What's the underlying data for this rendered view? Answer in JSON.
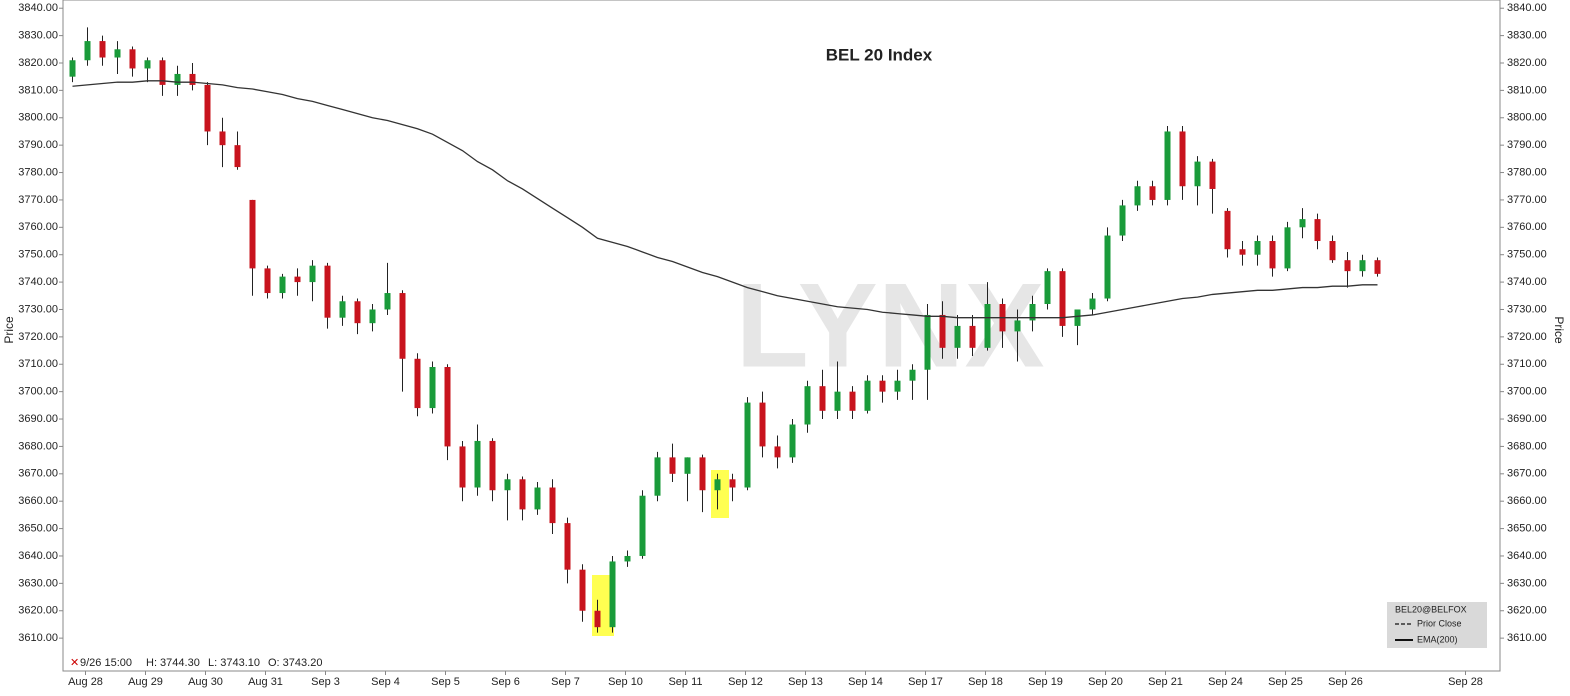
{
  "chart_data": {
    "type": "candlestick",
    "title": "BEL 20 Index",
    "ylabel": "Price",
    "watermark": "LYNX",
    "up_color": "#1a9b3a",
    "down_color": "#c8141e",
    "categories": [
      null,
      "Aug 28",
      null,
      null,
      null,
      "Aug 29",
      null,
      null,
      null,
      "Aug 30",
      null,
      null,
      null,
      "Aug 31",
      null,
      null,
      null,
      "Sep 3",
      null,
      null,
      null,
      "Sep 4",
      null,
      null,
      null,
      "Sep 5",
      null,
      null,
      null,
      "Sep 6",
      null,
      null,
      null,
      "Sep 7",
      null,
      null,
      null,
      "Sep 10",
      null,
      null,
      null,
      "Sep 11",
      null,
      null,
      null,
      "Sep 12",
      null,
      null,
      null,
      "Sep 13",
      null,
      null,
      null,
      "Sep 14",
      null,
      null,
      null,
      "Sep 17",
      null,
      null,
      null,
      "Sep 18",
      null,
      null,
      null,
      "Sep 19",
      null,
      null,
      null,
      "Sep 20",
      null,
      null,
      null,
      "Sep 21",
      null,
      null,
      null,
      "Sep 24",
      null,
      null,
      null,
      "Sep 25",
      null,
      null,
      null,
      "Sep 26",
      null,
      null,
      null,
      null,
      null,
      null,
      null,
      "Sep 28"
    ],
    "open": [
      3815,
      3821,
      3828,
      3822,
      3825,
      3818,
      3821,
      3812,
      3816,
      3812,
      3795,
      3790,
      3770,
      3745,
      3736,
      3742,
      3740,
      3746,
      3727,
      3733,
      3725,
      3730,
      3736,
      3712,
      3694,
      3709,
      3680,
      3665,
      3682,
      3664,
      3668,
      3657,
      3665,
      3652,
      3635,
      3620,
      3614,
      3638,
      3640,
      3662,
      3676,
      3670,
      3676,
      3664,
      3668,
      3665,
      3696,
      3680,
      3676,
      3688,
      3702,
      3693,
      3700,
      3693,
      3704,
      3700,
      3704,
      3708,
      3728,
      3716,
      3724,
      3716,
      3732,
      3722,
      3726,
      3732,
      3744,
      3724,
      3730,
      3734,
      3757,
      3768,
      3775,
      3770,
      3795,
      3775,
      3784,
      3766,
      3752,
      3750,
      3755,
      3745,
      3760,
      3763,
      3755,
      3748,
      3744,
      3748,
      null,
      null,
      null,
      null,
      null,
      null
    ],
    "high": [
      3822,
      3833,
      3830,
      3828,
      3826,
      3822,
      3822,
      3819,
      3820,
      3813,
      3800,
      3795,
      3770,
      3746,
      3743,
      3745,
      3748,
      3747,
      3735,
      3734,
      3732,
      3747,
      3737,
      3714,
      3711,
      3710,
      3682,
      3688,
      3683,
      3670,
      3669,
      3667,
      3668,
      3654,
      3637,
      3624,
      3640,
      3642,
      3664,
      3678,
      3681,
      3676,
      3677,
      3670,
      3670,
      3698,
      3700,
      3684,
      3690,
      3704,
      3708,
      3711,
      3702,
      3706,
      3706,
      3708,
      3710,
      3732,
      3733,
      3728,
      3728,
      3740,
      3734,
      3730,
      3735,
      3745,
      3745,
      3730,
      3736,
      3760,
      3770,
      3777,
      3777,
      3797,
      3797,
      3786,
      3785,
      3767,
      3755,
      3757,
      3757,
      3762,
      3767,
      3765,
      3757,
      3751,
      3750,
      3749,
      null,
      null,
      null,
      null,
      null,
      null
    ],
    "low": [
      3813,
      3819,
      3819,
      3816,
      3815,
      3813,
      3808,
      3808,
      3810,
      3790,
      3782,
      3781,
      3735,
      3734,
      3734,
      3735,
      3733,
      3723,
      3724,
      3721,
      3722,
      3728,
      3700,
      3691,
      3692,
      3675,
      3660,
      3662,
      3660,
      3653,
      3653,
      3655,
      3648,
      3630,
      3616,
      3612,
      3612,
      3636,
      3639,
      3660,
      3667,
      3660,
      3656,
      3657,
      3660,
      3664,
      3676,
      3672,
      3674,
      3685,
      3690,
      3690,
      3690,
      3692,
      3696,
      3697,
      3697,
      3697,
      3712,
      3712,
      3713,
      3715,
      3716,
      3711,
      3722,
      3730,
      3720,
      3717,
      3728,
      3733,
      3755,
      3766,
      3768,
      3768,
      3770,
      3768,
      3765,
      3749,
      3746,
      3746,
      3742,
      3744,
      3756,
      3752,
      3747,
      3738,
      3742,
      3742,
      null,
      null,
      null,
      null,
      null,
      null
    ],
    "close": [
      3821,
      3828,
      3822,
      3825,
      3818,
      3821,
      3812,
      3816,
      3812,
      3795,
      3790,
      3782,
      3745,
      3736,
      3742,
      3740,
      3746,
      3727,
      3733,
      3725,
      3730,
      3736,
      3712,
      3694,
      3709,
      3680,
      3665,
      3682,
      3664,
      3668,
      3657,
      3665,
      3652,
      3635,
      3620,
      3614,
      3638,
      3640,
      3662,
      3676,
      3670,
      3676,
      3664,
      3668,
      3665,
      3696,
      3680,
      3676,
      3688,
      3702,
      3693,
      3700,
      3693,
      3704,
      3700,
      3704,
      3708,
      3728,
      3716,
      3724,
      3716,
      3732,
      3722,
      3726,
      3732,
      3744,
      3724,
      3730,
      3734,
      3757,
      3768,
      3775,
      3770,
      3795,
      3775,
      3784,
      3774,
      3752,
      3750,
      3755,
      3745,
      3760,
      3763,
      3755,
      3748,
      3744,
      3748,
      3743,
      null,
      null,
      null,
      null,
      null,
      null
    ],
    "series": [
      {
        "name": "EMA(200)",
        "color": "#333333",
        "values": [
          3811.5,
          3812,
          3812.5,
          3813,
          3813,
          3813.5,
          3813.5,
          3813,
          3813,
          3812.5,
          3812,
          3811,
          3810.5,
          3809.5,
          3808.5,
          3807,
          3806,
          3804.5,
          3803,
          3801.5,
          3800,
          3799,
          3797.5,
          3796,
          3794,
          3791,
          3788,
          3784,
          3781,
          3777,
          3774,
          3770.5,
          3767,
          3763.5,
          3760,
          3756,
          3754.5,
          3753,
          3751,
          3749,
          3747.5,
          3745.5,
          3743.5,
          3742,
          3740,
          3738,
          3736.5,
          3735,
          3734,
          3733,
          3732,
          3731,
          3730.5,
          3730,
          3729,
          3728.5,
          3728,
          3727.5,
          3727.5,
          3727,
          3727,
          3727,
          3727,
          3727,
          3727,
          3727,
          3727,
          3727.5,
          3728,
          3729,
          3730,
          3731,
          3732,
          3733,
          3734,
          3734.5,
          3735.5,
          3736,
          3736.5,
          3737,
          3737,
          3737.5,
          3738,
          3738,
          3738.5,
          3738.5,
          3739,
          3739,
          null,
          null,
          null,
          null,
          null,
          null
        ]
      }
    ],
    "ylim": [
      3598,
      3843
    ],
    "yticks": [
      {
        "value": 3610,
        "label": "3610.00"
      },
      {
        "value": 3620,
        "label": "3620.00"
      },
      {
        "value": 3630,
        "label": "3630.00"
      },
      {
        "value": 3640,
        "label": "3640.00"
      },
      {
        "value": 3650,
        "label": "3650.00"
      },
      {
        "value": 3660,
        "label": "3660.00"
      },
      {
        "value": 3670,
        "label": "3670.00"
      },
      {
        "value": 3680,
        "label": "3680.00"
      },
      {
        "value": 3690,
        "label": "3690.00"
      },
      {
        "value": 3700,
        "label": "3700.00"
      },
      {
        "value": 3710,
        "label": "3710.00"
      },
      {
        "value": 3720,
        "label": "3720.00"
      },
      {
        "value": 3730,
        "label": "3730.00"
      },
      {
        "value": 3740,
        "label": "3740.00"
      },
      {
        "value": 3750,
        "label": "3750.00"
      },
      {
        "value": 3760,
        "label": "3760.00"
      },
      {
        "value": 3770,
        "label": "3770.00"
      },
      {
        "value": 3780,
        "label": "3780.00"
      },
      {
        "value": 3790,
        "label": "3790.00"
      },
      {
        "value": 3800,
        "label": "3800.00"
      },
      {
        "value": 3810,
        "label": "3810.00"
      },
      {
        "value": 3820,
        "label": "3820.00"
      },
      {
        "value": 3830,
        "label": "3830.00"
      },
      {
        "value": 3840,
        "label": "3840.00"
      }
    ],
    "info": {
      "time": "9/26 15:00",
      "high": "H: 3744.30",
      "low": "L: 3743.10",
      "open": "O: 3743.20"
    },
    "legend": {
      "symbol": "BEL20@BELFOX",
      "prior_close": "Prior Close"
    }
  }
}
